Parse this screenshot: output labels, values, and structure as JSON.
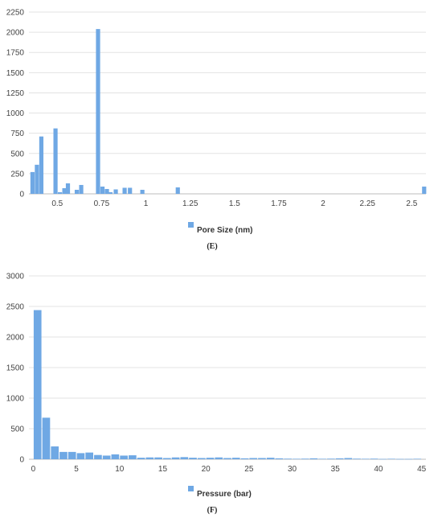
{
  "chart_data": [
    {
      "type": "bar",
      "caption": "(E)",
      "legend": "Pore Size (nm)",
      "legend_position": "bottom",
      "grid": true,
      "bar_color": "#6fa8e4",
      "xlim": [
        0.34,
        2.58
      ],
      "ylim": [
        0,
        2250
      ],
      "xticks": [
        0.5,
        0.75,
        1,
        1.25,
        1.5,
        1.75,
        2,
        2.25,
        2.5
      ],
      "xtick_labels": [
        "0.5",
        "0.75",
        "1",
        "1.25",
        "1.5",
        "1.75",
        "2",
        "2.25",
        "2.5"
      ],
      "yticks": [
        0,
        250,
        500,
        750,
        1000,
        1250,
        1500,
        1750,
        2000,
        2250
      ],
      "bin_width": 0.0235,
      "x": [
        0.36,
        0.385,
        0.41,
        0.49,
        0.515,
        0.54,
        0.56,
        0.61,
        0.635,
        0.73,
        0.755,
        0.78,
        0.8,
        0.83,
        0.88,
        0.91,
        0.98,
        1.18,
        2.57
      ],
      "values": [
        270,
        360,
        710,
        810,
        20,
        70,
        130,
        50,
        110,
        2040,
        90,
        60,
        20,
        55,
        75,
        75,
        50,
        80,
        90
      ]
    },
    {
      "type": "bar",
      "caption": "(F)",
      "legend": "Pressure (bar)",
      "legend_position": "bottom",
      "grid": true,
      "bar_color": "#6fa8e4",
      "xlim": [
        -0.5,
        45.5
      ],
      "ylim": [
        0,
        3000
      ],
      "xticks": [
        0,
        5,
        10,
        15,
        20,
        25,
        30,
        35,
        40,
        45
      ],
      "xtick_labels": [
        "0",
        "5",
        "10",
        "15",
        "20",
        "25",
        "30",
        "35",
        "40",
        "45"
      ],
      "yticks": [
        0,
        500,
        1000,
        1500,
        2000,
        2500,
        3000
      ],
      "bin_width": 0.9,
      "x": [
        0.5,
        1.5,
        2.5,
        3.5,
        4.5,
        5.5,
        6.5,
        7.5,
        8.5,
        9.5,
        10.5,
        11.5,
        12.5,
        13.5,
        14.5,
        15.5,
        16.5,
        17.5,
        18.5,
        19.5,
        20.5,
        21.5,
        22.5,
        23.5,
        24.5,
        25.5,
        26.5,
        27.5,
        28.5,
        29.5,
        30.5,
        31.5,
        32.5,
        33.5,
        34.5,
        35.5,
        36.5,
        37.5,
        38.5,
        39.5,
        40.5,
        41.5,
        42.5,
        43.5,
        44.5
      ],
      "values": [
        2440,
        680,
        210,
        120,
        120,
        100,
        110,
        70,
        60,
        80,
        60,
        65,
        25,
        30,
        30,
        20,
        30,
        35,
        25,
        20,
        25,
        30,
        20,
        25,
        15,
        20,
        20,
        25,
        15,
        10,
        8,
        10,
        15,
        8,
        10,
        15,
        20,
        10,
        8,
        10,
        5,
        8,
        5,
        5,
        8
      ]
    }
  ]
}
